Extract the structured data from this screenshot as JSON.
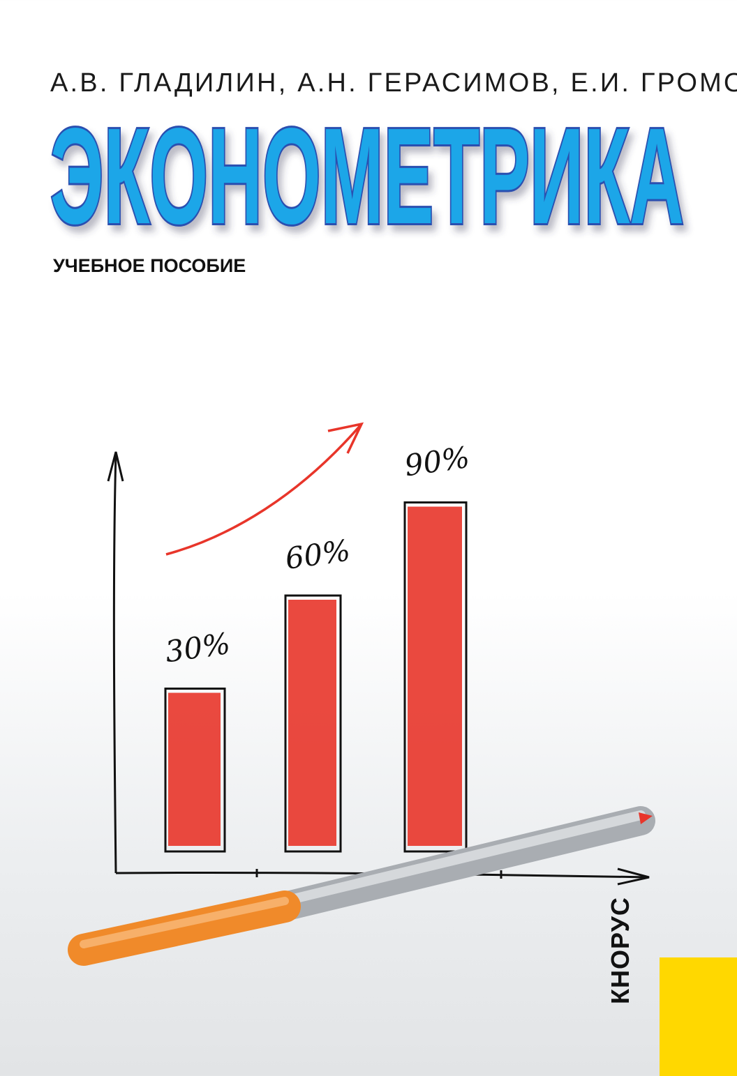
{
  "cover": {
    "authors": "А.В. ГЛАДИЛИН, А.Н. ГЕРАСИМОВ, Е.И. ГРОМОВ",
    "title": "ЭКОНОМЕТРИКА",
    "subtitle": "УЧЕБНОЕ ПОСОБИЕ",
    "publisher": "КНОРУС",
    "colors": {
      "title_fill": "#1aa6e8",
      "title_outline": "#2a4fb0",
      "bar_fill": "#e8352a",
      "accent_block": "#ffd800",
      "pen_cap": "#f08a2a"
    }
  },
  "chart_data": {
    "type": "bar",
    "style": "hand-drawn",
    "categories": [
      "",
      "",
      ""
    ],
    "values": [
      30,
      60,
      90
    ],
    "data_labels": [
      "30%",
      "60%",
      "90%"
    ],
    "trend_arrow": "up"
  }
}
